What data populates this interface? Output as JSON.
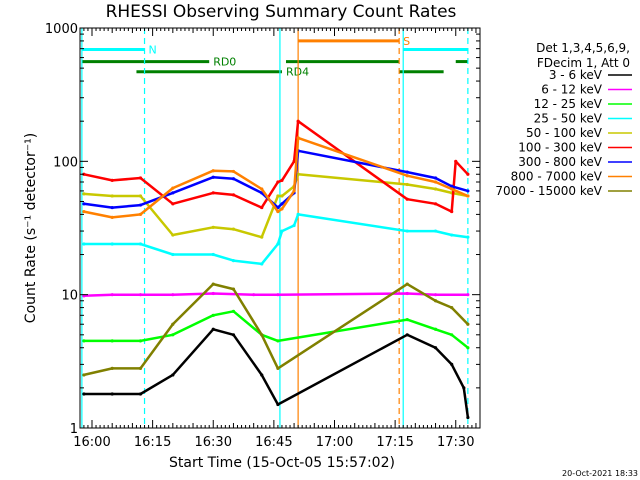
{
  "chart_data": {
    "type": "line",
    "title": "RHESSI Observing Summary Count Rates",
    "xlabel": "Start Time (15-Oct-05 15:57:02)",
    "ylabel": "Count Rate (s⁻¹ detector⁻¹)",
    "y_scale": "log",
    "ylim": [
      1,
      1000
    ],
    "xlim": [
      "15:57:02",
      "17:36:00"
    ],
    "x_ticks": [
      "16:00",
      "16:15",
      "16:30",
      "16:45",
      "17:00",
      "17:15",
      "17:30"
    ],
    "y_ticks": [
      "1",
      "10",
      "100",
      "1000"
    ],
    "legend_header": [
      "Det 1,3,4,5,6,9,",
      "FDecim 1, Att 0"
    ],
    "legend_position": "right",
    "timestamp": "20-Oct-2021 18:33",
    "status_bars": [
      {
        "label": "N",
        "color": "#00ffff",
        "level": 690,
        "segments": [
          [
            "15:57:30",
            "16:13:00"
          ],
          [
            "17:17:00",
            "17:33:00"
          ]
        ]
      },
      {
        "label": "RD0",
        "color": "#008000",
        "level": 560,
        "segments": [
          [
            "15:57:30",
            "16:29:00"
          ],
          [
            "16:48:00",
            "17:16:00"
          ],
          [
            "17:30:00",
            "17:33:00"
          ]
        ]
      },
      {
        "label": "RD4",
        "color": "#008000",
        "level": 470,
        "segments": [
          [
            "16:11:00",
            "16:47:00"
          ],
          [
            "17:16:00",
            "17:27:00"
          ]
        ]
      },
      {
        "label": "S",
        "color": "#ff8000",
        "level": 800,
        "segments": [
          [
            "16:51:00",
            "17:16:00"
          ]
        ]
      }
    ],
    "markers": [
      {
        "time": "15:57:30",
        "color": "#00ffff",
        "style": "solid"
      },
      {
        "time": "16:13:00",
        "color": "#00ffff",
        "style": "dashed"
      },
      {
        "time": "16:46:30",
        "color": "#00ffff",
        "style": "solid"
      },
      {
        "time": "16:51:00",
        "color": "#ff8000",
        "style": "solid"
      },
      {
        "time": "17:16:00",
        "color": "#ff8000",
        "style": "dashed"
      },
      {
        "time": "17:17:00",
        "color": "#00ffff",
        "style": "solid"
      },
      {
        "time": "17:33:00",
        "color": "#00ffff",
        "style": "dashed"
      }
    ],
    "series": [
      {
        "name": "3 - 6 keV",
        "color": "#000000",
        "x": [
          "15:58",
          "16:05",
          "16:12",
          "16:20",
          "16:30",
          "16:35",
          "16:42",
          "16:46",
          "17:18",
          "17:25",
          "17:29",
          "17:32",
          "17:33"
        ],
        "y": [
          1.8,
          1.8,
          1.8,
          2.5,
          5.5,
          5.0,
          2.5,
          1.5,
          5.0,
          4.0,
          3.0,
          2.0,
          1.2
        ]
      },
      {
        "name": "6 - 12 keV",
        "color": "#ff00ff",
        "x": [
          "15:58",
          "16:05",
          "16:12",
          "16:20",
          "16:30",
          "16:40",
          "16:46",
          "17:18",
          "17:25",
          "17:33"
        ],
        "y": [
          9.8,
          10.0,
          10.0,
          10.0,
          10.2,
          10.0,
          10.0,
          10.2,
          10.0,
          10.0
        ]
      },
      {
        "name": "12 - 25 keV",
        "color": "#00ff00",
        "x": [
          "15:58",
          "16:05",
          "16:12",
          "16:20",
          "16:30",
          "16:35",
          "16:42",
          "16:46",
          "17:18",
          "17:25",
          "17:29",
          "17:33"
        ],
        "y": [
          4.5,
          4.5,
          4.5,
          5.0,
          7.0,
          7.5,
          5.0,
          4.5,
          6.5,
          5.5,
          5.0,
          4.0
        ]
      },
      {
        "name": "25 - 50 keV",
        "color": "#00ffff",
        "x": [
          "15:58",
          "16:05",
          "16:12",
          "16:20",
          "16:30",
          "16:35",
          "16:42",
          "16:46",
          "16:47",
          "16:50",
          "16:51",
          "17:18",
          "17:25",
          "17:29",
          "17:33"
        ],
        "y": [
          24,
          24,
          24,
          20,
          20,
          18,
          17,
          24,
          30,
          33,
          40,
          30,
          30,
          28,
          27
        ]
      },
      {
        "name": "50 - 100 keV",
        "color": "#c8c800",
        "x": [
          "15:58",
          "16:05",
          "16:12",
          "16:20",
          "16:30",
          "16:35",
          "16:42",
          "16:46",
          "16:47",
          "16:50",
          "16:51",
          "17:18",
          "17:25",
          "17:29",
          "17:33"
        ],
        "y": [
          57,
          55,
          55,
          28,
          32,
          31,
          27,
          55,
          55,
          65,
          80,
          67,
          62,
          58,
          55
        ]
      },
      {
        "name": "100 - 300 keV",
        "color": "#ff0000",
        "x": [
          "15:58",
          "16:05",
          "16:12",
          "16:20",
          "16:30",
          "16:35",
          "16:42",
          "16:46",
          "16:47",
          "16:50",
          "16:51",
          "17:18",
          "17:25",
          "17:29",
          "17:30",
          "17:33"
        ],
        "y": [
          80,
          72,
          75,
          48,
          58,
          56,
          45,
          70,
          72,
          100,
          200,
          52,
          48,
          42,
          100,
          80
        ]
      },
      {
        "name": "300 - 800 keV",
        "color": "#0000ff",
        "x": [
          "15:58",
          "16:05",
          "16:12",
          "16:20",
          "16:30",
          "16:35",
          "16:42",
          "16:46",
          "16:47",
          "16:50",
          "16:51",
          "17:18",
          "17:25",
          "17:29",
          "17:33"
        ],
        "y": [
          48,
          45,
          47,
          58,
          76,
          74,
          58,
          45,
          48,
          58,
          120,
          83,
          75,
          65,
          60
        ]
      },
      {
        "name": "800 - 7000 keV",
        "color": "#ff8000",
        "x": [
          "15:58",
          "16:05",
          "16:12",
          "16:20",
          "16:30",
          "16:35",
          "16:42",
          "16:46",
          "16:47",
          "16:50",
          "16:51",
          "17:18",
          "17:25",
          "17:29",
          "17:33"
        ],
        "y": [
          42,
          38,
          40,
          63,
          85,
          84,
          62,
          42,
          44,
          60,
          150,
          78,
          70,
          62,
          55
        ]
      },
      {
        "name": "7000 - 15000 keV",
        "color": "#808000",
        "x": [
          "15:58",
          "16:05",
          "16:12",
          "16:20",
          "16:30",
          "16:35",
          "16:42",
          "16:46",
          "17:18",
          "17:25",
          "17:29",
          "17:33"
        ],
        "y": [
          2.5,
          2.8,
          2.8,
          6.0,
          12.0,
          11.0,
          5.0,
          2.8,
          12.0,
          9.0,
          8.0,
          6.0
        ]
      }
    ]
  }
}
